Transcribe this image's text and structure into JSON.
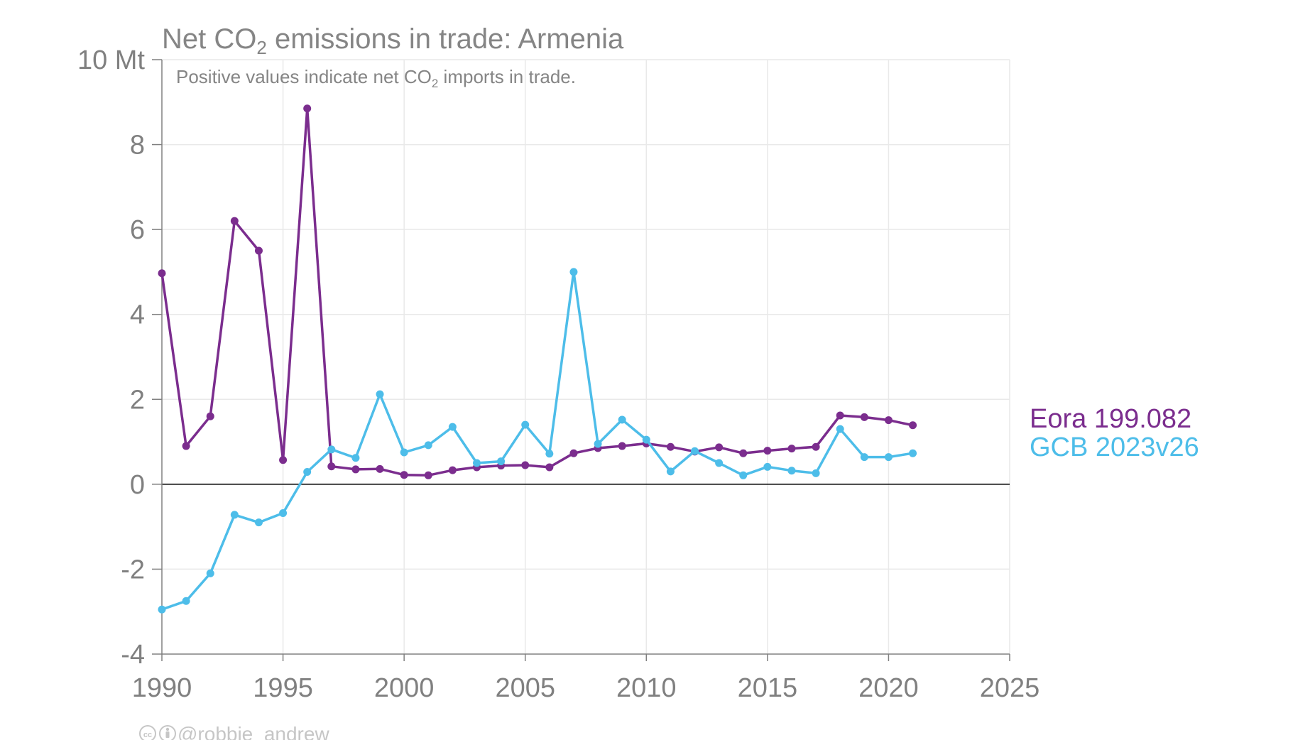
{
  "chart_data": {
    "type": "line",
    "title_main": "Net CO",
    "title_sub": "2",
    "title_rest": " emissions in trade: Armenia",
    "subtitle_main": "Positive values indicate net CO",
    "subtitle_sub": "2",
    "subtitle_rest": " imports in trade.",
    "xlim": [
      1990,
      2025
    ],
    "ylim": [
      -4,
      10
    ],
    "x_ticks": [
      "1990",
      "1995",
      "2000",
      "2005",
      "2010",
      "2015",
      "2020",
      "2025"
    ],
    "y_ticks": [
      "10 Mt",
      "8",
      "6",
      "4",
      "2",
      "0",
      "-2",
      "-4"
    ],
    "grid": true,
    "legend_position": "right",
    "credit": "@robbie_andrew",
    "years": [
      1990,
      1991,
      1992,
      1993,
      1994,
      1995,
      1996,
      1997,
      1998,
      1999,
      2000,
      2001,
      2002,
      2003,
      2004,
      2005,
      2006,
      2007,
      2008,
      2009,
      2010,
      2011,
      2012,
      2013,
      2014,
      2015,
      2016,
      2017,
      2018,
      2019,
      2020,
      2021
    ],
    "series": [
      {
        "name": "Eora 199.082",
        "color": "#7b2d8e",
        "values": [
          4.97,
          0.9,
          1.6,
          6.2,
          5.5,
          0.57,
          8.85,
          0.42,
          0.35,
          0.36,
          0.22,
          0.21,
          0.33,
          0.4,
          0.44,
          0.45,
          0.4,
          0.73,
          0.85,
          0.9,
          0.96,
          0.88,
          0.77,
          0.87,
          0.73,
          0.79,
          0.84,
          0.88,
          1.62,
          1.58,
          1.51,
          1.39
        ]
      },
      {
        "name": "GCB 2023v26",
        "color": "#4dbde9",
        "values": [
          -2.95,
          -2.75,
          -2.1,
          -0.72,
          -0.9,
          -0.68,
          0.29,
          0.82,
          0.62,
          2.12,
          0.75,
          0.92,
          1.35,
          0.5,
          0.54,
          1.4,
          0.72,
          5.0,
          0.95,
          1.52,
          1.05,
          0.3,
          0.78,
          0.5,
          0.21,
          0.41,
          0.32,
          0.26,
          1.3,
          0.64,
          0.64,
          0.73
        ]
      }
    ]
  }
}
